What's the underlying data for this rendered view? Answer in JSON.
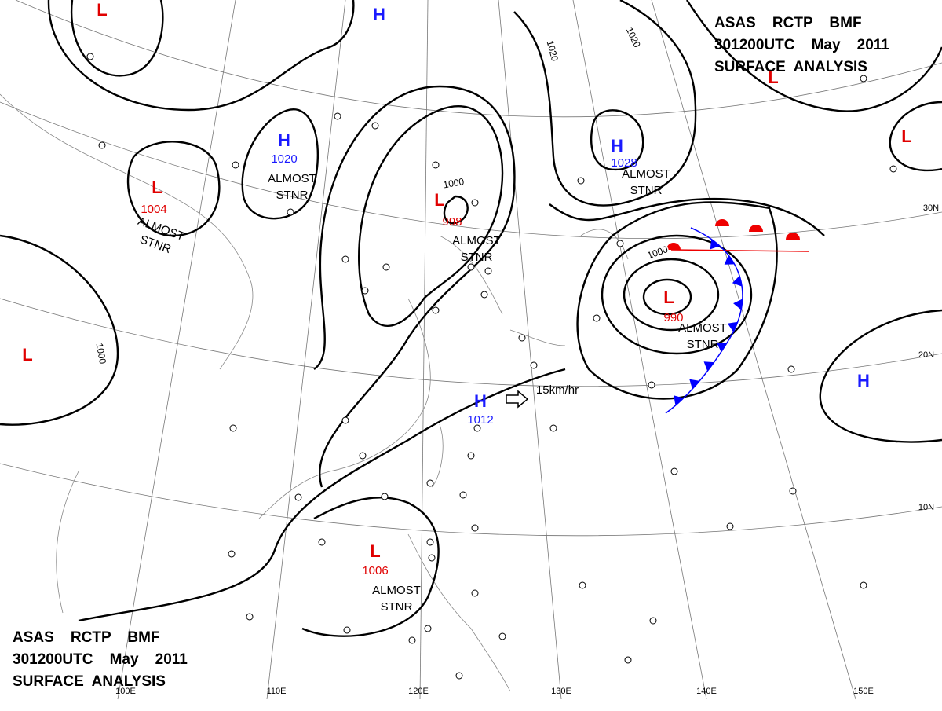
{
  "header_top": {
    "line1": "ASAS    RCTP    BMF",
    "line2": "301200UTC    May    2011",
    "line3": "SURFACE  ANALYSIS"
  },
  "header_bottom": {
    "line1": "ASAS    RCTP    BMF",
    "line2": "301200UTC    May    2011",
    "line3": "SURFACE  ANALYSIS"
  },
  "systems": [
    {
      "symbol": "L"
    },
    {
      "symbol": "H"
    },
    {
      "symbol": "H",
      "pressure": "1020",
      "note": "ALMOST STNR"
    },
    {
      "symbol": "L",
      "pressure": "1004",
      "note": "ALMOST STNR"
    },
    {
      "symbol": "L",
      "pressure": "998",
      "note": "ALMOST STNR"
    },
    {
      "symbol": "H",
      "pressure": "1028",
      "note": "ALMOST STNR"
    },
    {
      "symbol": "L"
    },
    {
      "symbol": "L"
    },
    {
      "symbol": "L",
      "pressure": "990",
      "note": "ALMOST STNR"
    },
    {
      "symbol": "L"
    },
    {
      "symbol": "H"
    },
    {
      "symbol": "H",
      "pressure": "1012",
      "motion": "15km/hr"
    },
    {
      "symbol": "L",
      "pressure": "1006",
      "note": "ALMOST STNR"
    }
  ],
  "isobar_labels": [
    "1020",
    "1020",
    "1000",
    "1000",
    "1000"
  ],
  "latitude_labels": [
    "30N",
    "20N",
    "10N"
  ],
  "longitude_labels": [
    "100E",
    "110E",
    "120E",
    "130E",
    "140E",
    "150E"
  ]
}
